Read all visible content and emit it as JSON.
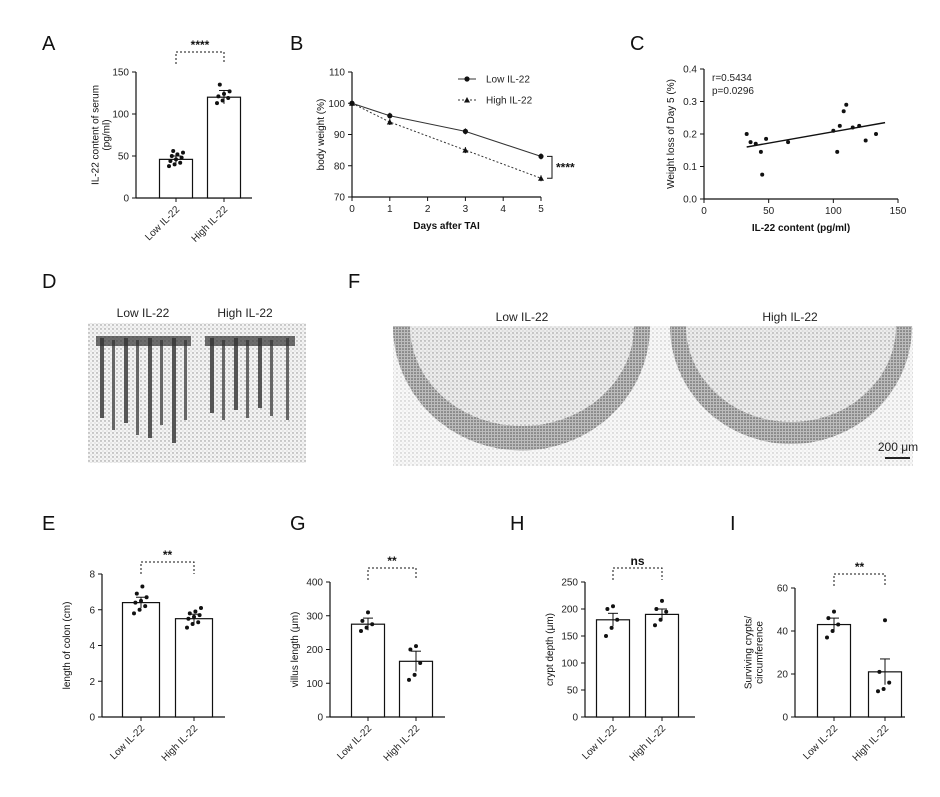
{
  "panels": {
    "A": "A",
    "B": "B",
    "C": "C",
    "D": "D",
    "E": "E",
    "F": "F",
    "G": "G",
    "H": "H",
    "I": "I"
  },
  "panel_D": {
    "labels": [
      "Low IL-22",
      "High IL-22"
    ]
  },
  "panel_F": {
    "labels": [
      "Low IL-22",
      "High IL-22"
    ],
    "scale_bar": "200 μm"
  },
  "chart_data": [
    {
      "id": "A",
      "type": "bar",
      "categories": [
        "Low IL-22",
        "High IL-22"
      ],
      "values": [
        46,
        120
      ],
      "errors": [
        4,
        8
      ],
      "points": [
        [
          38,
          40,
          42,
          44,
          46,
          48,
          50,
          52,
          54,
          56
        ],
        [
          113,
          116,
          119,
          121,
          124,
          127,
          135
        ]
      ],
      "ylabel": "IL-22 content of serum (pg/ml)",
      "xlabel": "",
      "ylim": [
        0,
        150
      ],
      "yticks": [
        0,
        50,
        100,
        150
      ],
      "significance": "****"
    },
    {
      "id": "B",
      "type": "line",
      "x": [
        0,
        1,
        3,
        5
      ],
      "series": [
        {
          "name": "Low IL-22",
          "values": [
            100,
            96,
            91,
            83
          ],
          "marker": "circle"
        },
        {
          "name": "High IL-22",
          "values": [
            100,
            94,
            85,
            76
          ],
          "marker": "triangle"
        }
      ],
      "xlabel": "Days after TAI",
      "ylabel": "body weight (%)",
      "xlim": [
        0,
        5
      ],
      "xticks": [
        0,
        1,
        2,
        3,
        4,
        5
      ],
      "ylim": [
        70,
        110
      ],
      "yticks": [
        70,
        80,
        90,
        100,
        110
      ],
      "legend": "top-right",
      "significance": "****"
    },
    {
      "id": "C",
      "type": "scatter",
      "points": [
        [
          33,
          0.2
        ],
        [
          36,
          0.175
        ],
        [
          40,
          0.17
        ],
        [
          44,
          0.145
        ],
        [
          45,
          0.075
        ],
        [
          48,
          0.185
        ],
        [
          65,
          0.175
        ],
        [
          100,
          0.21
        ],
        [
          103,
          0.145
        ],
        [
          105,
          0.225
        ],
        [
          108,
          0.27
        ],
        [
          110,
          0.29
        ],
        [
          115,
          0.22
        ],
        [
          120,
          0.225
        ],
        [
          125,
          0.18
        ],
        [
          133,
          0.2
        ]
      ],
      "fit": {
        "x": [
          33,
          140
        ],
        "y": [
          0.16,
          0.235
        ]
      },
      "annotations": [
        "r=0.5434",
        "p=0.0296"
      ],
      "xlabel": "IL-22 content (pg/ml)",
      "ylabel": "Weight loss of Day 5 (%)",
      "xlim": [
        0,
        150
      ],
      "xticks": [
        0,
        50,
        100,
        150
      ],
      "ylim": [
        0,
        0.4
      ],
      "yticks": [
        "0.0",
        "0.1",
        "0.2",
        "0.3",
        "0.4"
      ]
    },
    {
      "id": "E",
      "type": "bar",
      "categories": [
        "Low IL-22",
        "High  IL-22"
      ],
      "values": [
        6.4,
        5.5
      ],
      "errors": [
        0.3,
        0.25
      ],
      "points": [
        [
          5.8,
          6.0,
          6.2,
          6.4,
          6.5,
          6.7,
          6.9,
          7.3
        ],
        [
          5.0,
          5.2,
          5.3,
          5.5,
          5.6,
          5.7,
          5.8,
          5.9,
          6.1
        ]
      ],
      "ylabel": "length of colon (cm)",
      "xlabel": "",
      "ylim": [
        0,
        8
      ],
      "yticks": [
        0,
        2,
        4,
        6,
        8
      ],
      "significance": "**"
    },
    {
      "id": "G",
      "type": "bar",
      "categories": [
        "Low IL-22",
        "High  IL-22"
      ],
      "values": [
        275,
        165
      ],
      "errors": [
        18,
        30
      ],
      "points": [
        [
          255,
          265,
          275,
          285,
          310
        ],
        [
          110,
          125,
          160,
          200,
          210
        ]
      ],
      "ylabel": "villus length (μm)",
      "xlabel": "",
      "ylim": [
        0,
        400
      ],
      "yticks": [
        0,
        100,
        200,
        300,
        400
      ],
      "significance": "**"
    },
    {
      "id": "H",
      "type": "bar",
      "categories": [
        "Low IL-22",
        "High IL-22"
      ],
      "values": [
        180,
        190
      ],
      "errors": [
        12,
        10
      ],
      "points": [
        [
          150,
          165,
          180,
          200,
          205
        ],
        [
          170,
          180,
          195,
          200,
          215
        ]
      ],
      "ylabel": "crypt depth (μm)",
      "xlabel": "",
      "ylim": [
        0,
        250
      ],
      "yticks": [
        0,
        50,
        100,
        150,
        200,
        250
      ],
      "significance": "ns"
    },
    {
      "id": "I",
      "type": "bar",
      "categories": [
        "Low IL-22",
        "High IL-22"
      ],
      "values": [
        43,
        21
      ],
      "errors": [
        3,
        6
      ],
      "points": [
        [
          37,
          40,
          43,
          46,
          49
        ],
        [
          12,
          13,
          16,
          21,
          45
        ]
      ],
      "ylabel": "Surviving crypts/ circumference",
      "xlabel": "",
      "ylim": [
        0,
        60
      ],
      "yticks": [
        0,
        20,
        40,
        60
      ],
      "significance": "**"
    }
  ]
}
